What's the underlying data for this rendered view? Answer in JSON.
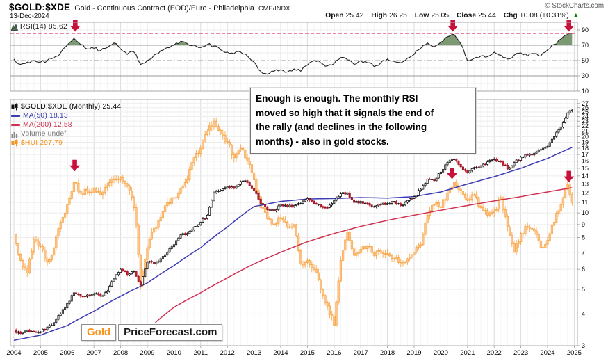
{
  "header": {
    "symbol": "$GOLD:$XDE",
    "description": "Gold - Continuous Contract (EOD)/Euro - Philadelphia",
    "exchange": "CME/INDX",
    "copyright": "© StockCharts.com",
    "date": "13-Dec-2024",
    "quote": [
      {
        "label": "Open",
        "value": "25.42"
      },
      {
        "label": "High",
        "value": "26.25"
      },
      {
        "label": "Low",
        "value": "25.05"
      },
      {
        "label": "Close",
        "value": "25.44"
      },
      {
        "label": "Chg",
        "value": "+0.08 (+0.31%)"
      }
    ],
    "chg_arrow": "▲"
  },
  "rsi_legend": "RSI(14) 85.62",
  "main_legend": {
    "symbol": "$GOLD:$XDE (Monthly) 25.44",
    "ma50": "MA(50) 18.13",
    "ma200": "MA(200) 12.58",
    "volume": "Volume undef",
    "hui": "$HUI 297.79"
  },
  "annotation": {
    "lines": [
      "Enough is enough. The monthly RSI",
      "moved so high that it signals the end of",
      "the rally (and declines in the following",
      "months) - also in gold stocks."
    ]
  },
  "logo": {
    "word1": "Gold",
    "word2": "PriceForecast.com"
  },
  "colors": {
    "up_candle": "#111111",
    "down_candle": "#d6202f",
    "down_candle_edge": "#8f0f1f",
    "hui": "#f6921e",
    "hui_fill": "#fdc489",
    "ma50": "#3b3bb3",
    "ma200": "#cf3050",
    "rsi_line": "#222222",
    "rsi_fill": "#6d8e63",
    "signal_dashed": "#e0426b",
    "arrow": "#c8103a",
    "grid_year": "#dcdcdc",
    "grid_minor": "#f4f4f4",
    "grid_h": "#ececec",
    "panel_border": "#a8a8a8",
    "level_line": "#999999",
    "chg_up": "#008000",
    "logo_orange": "#f7941d",
    "volume_text": "#777777",
    "label_text": "#000000"
  },
  "chart_data": {
    "type": "candlestick",
    "title": "$GOLD:$XDE Gold - Continuous Contract (EOD)/Euro - Philadelphia, Monthly, 2004-2024",
    "x_range": [
      2003.87,
      2025.12
    ],
    "y_log_range": [
      3,
      28
    ],
    "rsi_range": [
      10,
      100
    ],
    "grid": true,
    "legend_position": "top-left",
    "x_years": [
      2004,
      2005,
      2006,
      2007,
      2008,
      2009,
      2010,
      2011,
      2012,
      2013,
      2014,
      2015,
      2016,
      2017,
      2018,
      2019,
      2020,
      2021,
      2022,
      2023,
      2024,
      2025
    ],
    "price_ticks": [
      27,
      26,
      25,
      24,
      23,
      22,
      21,
      20,
      19,
      18,
      17,
      16,
      15,
      14,
      13,
      12,
      11,
      10,
      9,
      8,
      7,
      6,
      5,
      4,
      3
    ],
    "rsi_ticks": [
      90,
      70,
      50,
      30,
      10
    ],
    "rsi_levels": {
      "overbought": 70,
      "midline": 50,
      "oversold": 30
    },
    "rsi_signal_level": 85.62,
    "rsi_series": [
      [
        2004.0,
        52
      ],
      [
        2004.25,
        45
      ],
      [
        2004.5,
        48
      ],
      [
        2004.75,
        50
      ],
      [
        2005.0,
        48
      ],
      [
        2005.25,
        50
      ],
      [
        2005.5,
        54
      ],
      [
        2005.75,
        60
      ],
      [
        2006.0,
        70
      ],
      [
        2006.25,
        79
      ],
      [
        2006.5,
        71
      ],
      [
        2006.75,
        65
      ],
      [
        2007.0,
        66
      ],
      [
        2007.25,
        63
      ],
      [
        2007.5,
        67
      ],
      [
        2007.75,
        73
      ],
      [
        2008.0,
        65
      ],
      [
        2008.25,
        58
      ],
      [
        2008.5,
        61
      ],
      [
        2008.75,
        45
      ],
      [
        2009.0,
        50
      ],
      [
        2009.25,
        57
      ],
      [
        2009.5,
        63
      ],
      [
        2009.75,
        67
      ],
      [
        2010.0,
        70
      ],
      [
        2010.25,
        75
      ],
      [
        2010.5,
        72
      ],
      [
        2010.75,
        70
      ],
      [
        2011.0,
        67
      ],
      [
        2011.25,
        71
      ],
      [
        2011.5,
        69
      ],
      [
        2011.75,
        64
      ],
      [
        2012.0,
        61
      ],
      [
        2012.25,
        59
      ],
      [
        2012.5,
        61
      ],
      [
        2012.75,
        56
      ],
      [
        2013.0,
        48
      ],
      [
        2013.25,
        36
      ],
      [
        2013.5,
        32
      ],
      [
        2013.75,
        36
      ],
      [
        2014.0,
        38
      ],
      [
        2014.25,
        35
      ],
      [
        2014.5,
        39
      ],
      [
        2014.75,
        36
      ],
      [
        2015.0,
        44
      ],
      [
        2015.25,
        50
      ],
      [
        2015.5,
        47
      ],
      [
        2015.75,
        43
      ],
      [
        2016.0,
        46
      ],
      [
        2016.25,
        54
      ],
      [
        2016.5,
        51
      ],
      [
        2016.75,
        45
      ],
      [
        2017.0,
        50
      ],
      [
        2017.25,
        47
      ],
      [
        2017.5,
        42
      ],
      [
        2017.75,
        47
      ],
      [
        2018.0,
        52
      ],
      [
        2018.25,
        49
      ],
      [
        2018.5,
        47
      ],
      [
        2018.75,
        53
      ],
      [
        2019.0,
        58
      ],
      [
        2019.25,
        66
      ],
      [
        2019.5,
        73
      ],
      [
        2019.75,
        68
      ],
      [
        2020.0,
        74
      ],
      [
        2020.25,
        81
      ],
      [
        2020.5,
        84
      ],
      [
        2020.75,
        72
      ],
      [
        2021.0,
        50
      ],
      [
        2021.25,
        53
      ],
      [
        2021.5,
        56
      ],
      [
        2021.75,
        55
      ],
      [
        2022.0,
        61
      ],
      [
        2022.25,
        57
      ],
      [
        2022.5,
        52
      ],
      [
        2022.75,
        57
      ],
      [
        2023.0,
        60
      ],
      [
        2023.25,
        56
      ],
      [
        2023.5,
        59
      ],
      [
        2023.75,
        56
      ],
      [
        2024.0,
        64
      ],
      [
        2024.25,
        71
      ],
      [
        2024.5,
        78
      ],
      [
        2024.75,
        84
      ],
      [
        2024.92,
        85.62
      ]
    ],
    "gold_close": [
      [
        2004.0,
        3.45
      ],
      [
        2004.25,
        3.35
      ],
      [
        2004.5,
        3.45
      ],
      [
        2004.75,
        3.4
      ],
      [
        2005.0,
        3.4
      ],
      [
        2005.25,
        3.55
      ],
      [
        2005.5,
        3.7
      ],
      [
        2005.75,
        4.0
      ],
      [
        2006.0,
        4.4
      ],
      [
        2006.25,
        4.85
      ],
      [
        2006.5,
        4.7
      ],
      [
        2006.75,
        4.75
      ],
      [
        2007.0,
        4.8
      ],
      [
        2007.25,
        4.7
      ],
      [
        2007.5,
        4.9
      ],
      [
        2007.75,
        5.5
      ],
      [
        2008.0,
        6.0
      ],
      [
        2008.25,
        5.7
      ],
      [
        2008.5,
        5.9
      ],
      [
        2008.75,
        5.2
      ],
      [
        2009.0,
        6.4
      ],
      [
        2009.25,
        6.3
      ],
      [
        2009.5,
        6.6
      ],
      [
        2009.75,
        7.0
      ],
      [
        2010.0,
        7.5
      ],
      [
        2010.25,
        8.2
      ],
      [
        2010.5,
        8.3
      ],
      [
        2010.75,
        8.8
      ],
      [
        2011.0,
        9.2
      ],
      [
        2011.25,
        9.8
      ],
      [
        2011.5,
        12.0
      ],
      [
        2011.75,
        12.3
      ],
      [
        2012.0,
        12.7
      ],
      [
        2012.25,
        12.5
      ],
      [
        2012.5,
        13.3
      ],
      [
        2012.75,
        13.2
      ],
      [
        2013.0,
        12.2
      ],
      [
        2013.25,
        10.9
      ],
      [
        2013.5,
        10.3
      ],
      [
        2013.75,
        10.2
      ],
      [
        2014.0,
        10.8
      ],
      [
        2014.25,
        10.6
      ],
      [
        2014.5,
        10.7
      ],
      [
        2014.75,
        10.9
      ],
      [
        2015.0,
        11.4
      ],
      [
        2015.25,
        10.9
      ],
      [
        2015.5,
        10.6
      ],
      [
        2015.75,
        10.5
      ],
      [
        2016.0,
        11.2
      ],
      [
        2016.25,
        11.9
      ],
      [
        2016.5,
        12.0
      ],
      [
        2016.75,
        11.0
      ],
      [
        2017.0,
        11.1
      ],
      [
        2017.25,
        10.9
      ],
      [
        2017.5,
        10.6
      ],
      [
        2017.75,
        10.8
      ],
      [
        2018.0,
        10.9
      ],
      [
        2018.25,
        11.1
      ],
      [
        2018.5,
        10.7
      ],
      [
        2018.75,
        11.2
      ],
      [
        2019.0,
        11.6
      ],
      [
        2019.25,
        12.4
      ],
      [
        2019.5,
        13.6
      ],
      [
        2019.75,
        13.4
      ],
      [
        2020.0,
        14.5
      ],
      [
        2020.25,
        15.8
      ],
      [
        2020.5,
        16.3
      ],
      [
        2020.75,
        15.2
      ],
      [
        2021.0,
        14.4
      ],
      [
        2021.25,
        15.1
      ],
      [
        2021.5,
        15.3
      ],
      [
        2021.75,
        15.9
      ],
      [
        2022.0,
        16.3
      ],
      [
        2022.25,
        15.9
      ],
      [
        2022.5,
        14.9
      ],
      [
        2022.75,
        15.8
      ],
      [
        2023.0,
        16.6
      ],
      [
        2023.25,
        16.9
      ],
      [
        2023.5,
        17.2
      ],
      [
        2023.75,
        17.8
      ],
      [
        2024.0,
        18.3
      ],
      [
        2024.25,
        20.0
      ],
      [
        2024.5,
        21.8
      ],
      [
        2024.75,
        24.8
      ],
      [
        2024.92,
        25.44
      ]
    ],
    "hui_close": [
      [
        2004.0,
        8.2
      ],
      [
        2004.25,
        6.5
      ],
      [
        2004.5,
        5.8
      ],
      [
        2004.75,
        7.9
      ],
      [
        2005.0,
        7.4
      ],
      [
        2005.25,
        6.4
      ],
      [
        2005.5,
        7.3
      ],
      [
        2005.75,
        9.2
      ],
      [
        2006.0,
        10.8
      ],
      [
        2006.25,
        13.2
      ],
      [
        2006.5,
        12.0
      ],
      [
        2006.75,
        12.2
      ],
      [
        2007.0,
        12.5
      ],
      [
        2007.25,
        11.8
      ],
      [
        2007.5,
        12.8
      ],
      [
        2007.75,
        13.5
      ],
      [
        2008.0,
        13.8
      ],
      [
        2008.25,
        12.8
      ],
      [
        2008.5,
        10.5
      ],
      [
        2008.75,
        5.2
      ],
      [
        2009.0,
        7.3
      ],
      [
        2009.25,
        8.7
      ],
      [
        2009.5,
        9.6
      ],
      [
        2009.75,
        11.0
      ],
      [
        2010.0,
        11.5
      ],
      [
        2010.25,
        12.5
      ],
      [
        2010.5,
        13.5
      ],
      [
        2010.75,
        16.5
      ],
      [
        2011.0,
        18.0
      ],
      [
        2011.25,
        21.0
      ],
      [
        2011.5,
        23.0
      ],
      [
        2011.75,
        20.5
      ],
      [
        2012.0,
        19.0
      ],
      [
        2012.25,
        16.5
      ],
      [
        2012.5,
        18.0
      ],
      [
        2012.75,
        16.0
      ],
      [
        2013.0,
        13.5
      ],
      [
        2013.25,
        10.5
      ],
      [
        2013.5,
        9.5
      ],
      [
        2013.75,
        9.0
      ],
      [
        2014.0,
        9.5
      ],
      [
        2014.25,
        8.8
      ],
      [
        2014.5,
        9.0
      ],
      [
        2014.75,
        6.3
      ],
      [
        2015.0,
        6.5
      ],
      [
        2015.25,
        6.0
      ],
      [
        2015.5,
        5.0
      ],
      [
        2015.75,
        4.3
      ],
      [
        2016.0,
        3.6
      ],
      [
        2016.25,
        6.5
      ],
      [
        2016.5,
        8.4
      ],
      [
        2016.75,
        6.8
      ],
      [
        2017.0,
        7.2
      ],
      [
        2017.25,
        7.4
      ],
      [
        2017.5,
        6.8
      ],
      [
        2017.75,
        7.0
      ],
      [
        2018.0,
        6.9
      ],
      [
        2018.25,
        6.6
      ],
      [
        2018.5,
        6.3
      ],
      [
        2018.75,
        6.6
      ],
      [
        2019.0,
        7.0
      ],
      [
        2019.25,
        7.5
      ],
      [
        2019.5,
        9.8
      ],
      [
        2019.75,
        10.8
      ],
      [
        2020.0,
        10.5
      ],
      [
        2020.25,
        12.0
      ],
      [
        2020.5,
        13.2
      ],
      [
        2020.75,
        12.2
      ],
      [
        2021.0,
        11.2
      ],
      [
        2021.25,
        11.8
      ],
      [
        2021.5,
        10.5
      ],
      [
        2021.75,
        9.8
      ],
      [
        2022.0,
        10.2
      ],
      [
        2022.25,
        11.5
      ],
      [
        2022.5,
        8.8
      ],
      [
        2022.75,
        7.0
      ],
      [
        2023.0,
        8.3
      ],
      [
        2023.25,
        8.8
      ],
      [
        2023.5,
        8.5
      ],
      [
        2023.75,
        7.3
      ],
      [
        2024.0,
        7.8
      ],
      [
        2024.25,
        9.2
      ],
      [
        2024.5,
        10.8
      ],
      [
        2024.75,
        12.9
      ],
      [
        2024.92,
        11.0
      ]
    ],
    "ma50": [
      [
        2004.0,
        3.15
      ],
      [
        2005,
        3.3
      ],
      [
        2006,
        3.6
      ],
      [
        2007,
        4.1
      ],
      [
        2008,
        4.7
      ],
      [
        2009,
        5.3
      ],
      [
        2010,
        6.2
      ],
      [
        2011,
        7.3
      ],
      [
        2012,
        8.8
      ],
      [
        2013,
        10.6
      ],
      [
        2014,
        11.1
      ],
      [
        2015,
        11.35
      ],
      [
        2016,
        11.4
      ],
      [
        2017,
        11.5
      ],
      [
        2018,
        11.45
      ],
      [
        2019,
        11.6
      ],
      [
        2020,
        12.1
      ],
      [
        2021,
        13.0
      ],
      [
        2022,
        13.9
      ],
      [
        2023,
        15.0
      ],
      [
        2024,
        16.4
      ],
      [
        2024.92,
        18.13
      ]
    ],
    "ma200": [
      [
        2009.3,
        3.7
      ],
      [
        2010,
        4.25
      ],
      [
        2011,
        4.85
      ],
      [
        2012,
        5.55
      ],
      [
        2013,
        6.3
      ],
      [
        2014,
        7.0
      ],
      [
        2015,
        7.7
      ],
      [
        2016,
        8.3
      ],
      [
        2017,
        8.85
      ],
      [
        2018,
        9.35
      ],
      [
        2019,
        9.8
      ],
      [
        2020,
        10.25
      ],
      [
        2021,
        10.7
      ],
      [
        2022,
        11.15
      ],
      [
        2023,
        11.6
      ],
      [
        2024,
        12.1
      ],
      [
        2024.92,
        12.58
      ]
    ],
    "arrows_rsi": [
      2006.3,
      2020.45,
      2024.8
    ],
    "arrows_main": [
      [
        2006.28,
        14.6
      ],
      [
        2020.42,
        13.6
      ],
      [
        2024.8,
        13.2
      ]
    ]
  }
}
